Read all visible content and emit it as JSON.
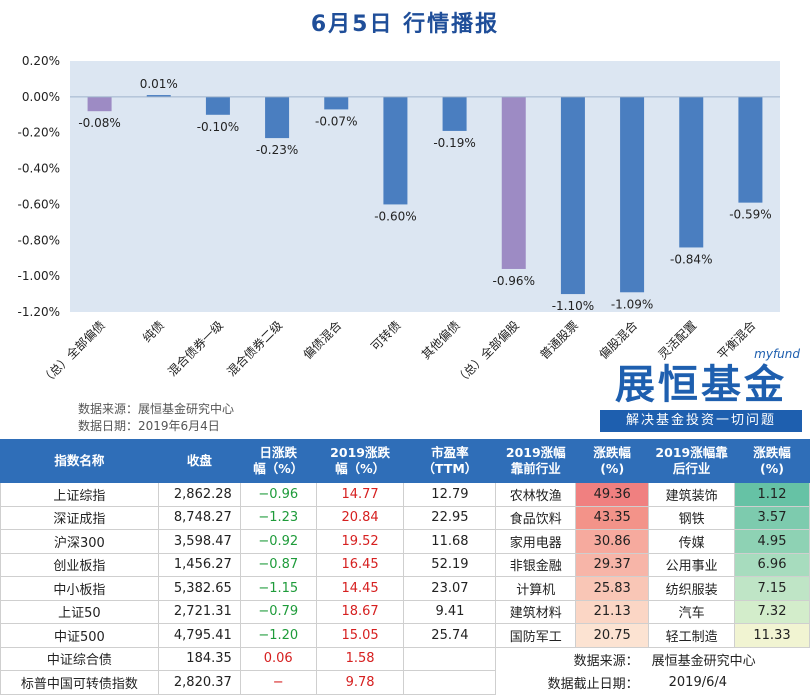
{
  "title": "6月5日 行情播报",
  "chart_data": {
    "type": "bar",
    "categories": [
      "（总）全部偏债",
      "纯债",
      "混合债券一级",
      "混合债券二级",
      "偏债混合",
      "可转债",
      "其他偏债",
      "（总）全部偏股",
      "普通股票",
      "偏股混合",
      "灵活配置",
      "平衡混合"
    ],
    "values": [
      -0.08,
      0.01,
      -0.1,
      -0.23,
      -0.07,
      -0.6,
      -0.19,
      -0.96,
      -1.1,
      -1.09,
      -0.84,
      -0.59
    ],
    "value_labels": [
      "-0.08%",
      "0.01%",
      "-0.10%",
      "-0.23%",
      "-0.07%",
      "-0.60%",
      "-0.19%",
      "-0.96%",
      "-1.10%",
      "-1.09%",
      "-0.84%",
      "-0.59%"
    ],
    "highlight": [
      0,
      7
    ],
    "ylim": [
      -1.2,
      0.2
    ],
    "yticks": [
      0.2,
      0.0,
      -0.2,
      -0.4,
      -0.6,
      -0.8,
      -1.0,
      -1.2
    ],
    "ytick_labels": [
      "0.20%",
      "0.00%",
      "-0.20%",
      "-0.40%",
      "-0.60%",
      "-0.80%",
      "-1.00%",
      "-1.20%"
    ],
    "bar_color": "#4A7EC0",
    "highlight_color": "#9D8BC4",
    "plot_bg": "#DCE6F2"
  },
  "source": {
    "line1": "数据来源：展恒基金研究中心",
    "line2": "数据日期：2019年6月4日"
  },
  "logo": {
    "top": "myfund",
    "main": "展恒基金",
    "sub": "解决基金投资一切问题"
  },
  "table": {
    "headers": {
      "name": "指数名称",
      "close": "收盘",
      "day": "日涨跌\n幅（%）",
      "ytd": "2019涨跌\n幅（%）",
      "pe": "市盈率\n（TTM）",
      "lead": "2019涨幅\n靠前行业",
      "lead_pct": "涨跌幅\n(%)",
      "lag": "2019涨幅靠\n后行业",
      "lag_pct": "涨跌幅\n(%)"
    },
    "rows": [
      {
        "name": "上证综指",
        "close": "2,862.28",
        "day": "−0.96",
        "ytd": "14.77",
        "pe": "12.79",
        "lead": "农林牧渔",
        "lead_pct": "49.36",
        "lag": "建筑装饰",
        "lag_pct": "1.12"
      },
      {
        "name": "深证成指",
        "close": "8,748.27",
        "day": "−1.23",
        "ytd": "20.84",
        "pe": "22.95",
        "lead": "食品饮料",
        "lead_pct": "43.35",
        "lag": "钢铁",
        "lag_pct": "3.57"
      },
      {
        "name": "沪深300",
        "close": "3,598.47",
        "day": "−0.92",
        "ytd": "19.52",
        "pe": "11.68",
        "lead": "家用电器",
        "lead_pct": "30.86",
        "lag": "传媒",
        "lag_pct": "4.95"
      },
      {
        "name": "创业板指",
        "close": "1,456.27",
        "day": "−0.87",
        "ytd": "16.45",
        "pe": "52.19",
        "lead": "非银金融",
        "lead_pct": "29.37",
        "lag": "公用事业",
        "lag_pct": "6.96"
      },
      {
        "name": "中小板指",
        "close": "5,382.65",
        "day": "−1.15",
        "ytd": "14.45",
        "pe": "23.07",
        "lead": "计算机",
        "lead_pct": "25.83",
        "lag": "纺织服装",
        "lag_pct": "7.15"
      },
      {
        "name": "上证50",
        "close": "2,721.31",
        "day": "−0.79",
        "ytd": "18.67",
        "pe": "9.41",
        "lead": "建筑材料",
        "lead_pct": "21.13",
        "lag": "汽车",
        "lag_pct": "7.32"
      },
      {
        "name": "中证500",
        "close": "4,795.41",
        "day": "−1.20",
        "ytd": "15.05",
        "pe": "25.74",
        "lead": "国防军工",
        "lead_pct": "20.75",
        "lag": "轻工制造",
        "lag_pct": "11.33"
      }
    ],
    "extra_rows": [
      {
        "name": "中证综合债",
        "close": "184.35",
        "day": "0.06",
        "ytd": "1.58"
      },
      {
        "name": "标普中国可转债指数",
        "close": "2,820.37",
        "day": "−",
        "ytd": "9.78"
      }
    ],
    "note_source_label": "数据来源：",
    "note_source_value": "展恒基金研究中心",
    "note_date_label": "数据截止日期：",
    "note_date_value": "2019/6/4",
    "lead_colors": [
      "#F08080",
      "#F39389",
      "#F6AA9E",
      "#F7B5A8",
      "#F9C6B6",
      "#FBD6C5",
      "#FCE3D2"
    ],
    "lag_colors": [
      "#66C2A5",
      "#7DCBAE",
      "#8ED2B4",
      "#A7DCBE",
      "#BFE5C6",
      "#D3EDCB",
      "#F1F4D2"
    ]
  }
}
